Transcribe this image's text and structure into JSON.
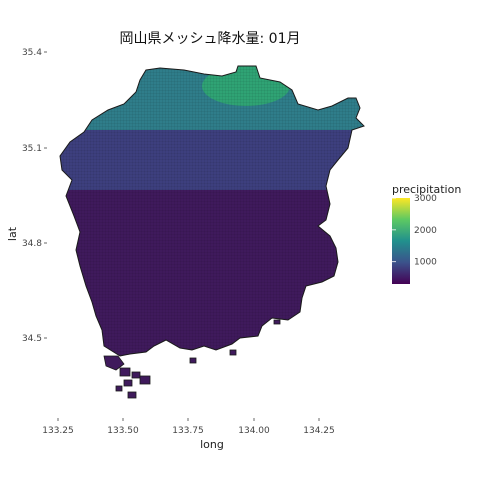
{
  "title": "岡山県メッシュ降水量: 01月",
  "map_data": {
    "type": "choropleth-grid",
    "xlabel": "long",
    "ylabel": "lat",
    "x_ticks": [
      "133.25",
      "133.50",
      "133.75",
      "134.00",
      "134.25"
    ],
    "y_ticks": [
      "35.4",
      "35.1",
      "34.8",
      "34.5"
    ],
    "legend": {
      "title": "precipitation",
      "ticks": [
        "3000",
        "2000",
        "1000"
      ],
      "range": [
        300,
        3000
      ],
      "colors": [
        "#440154",
        "#3b528b",
        "#21908d",
        "#5dc962",
        "#fde725"
      ]
    },
    "fill_colors": {
      "south": "#3f1a5c",
      "mid": "#3d3f7e",
      "north": "#2f7d8a",
      "peak": "#2fa374"
    }
  }
}
